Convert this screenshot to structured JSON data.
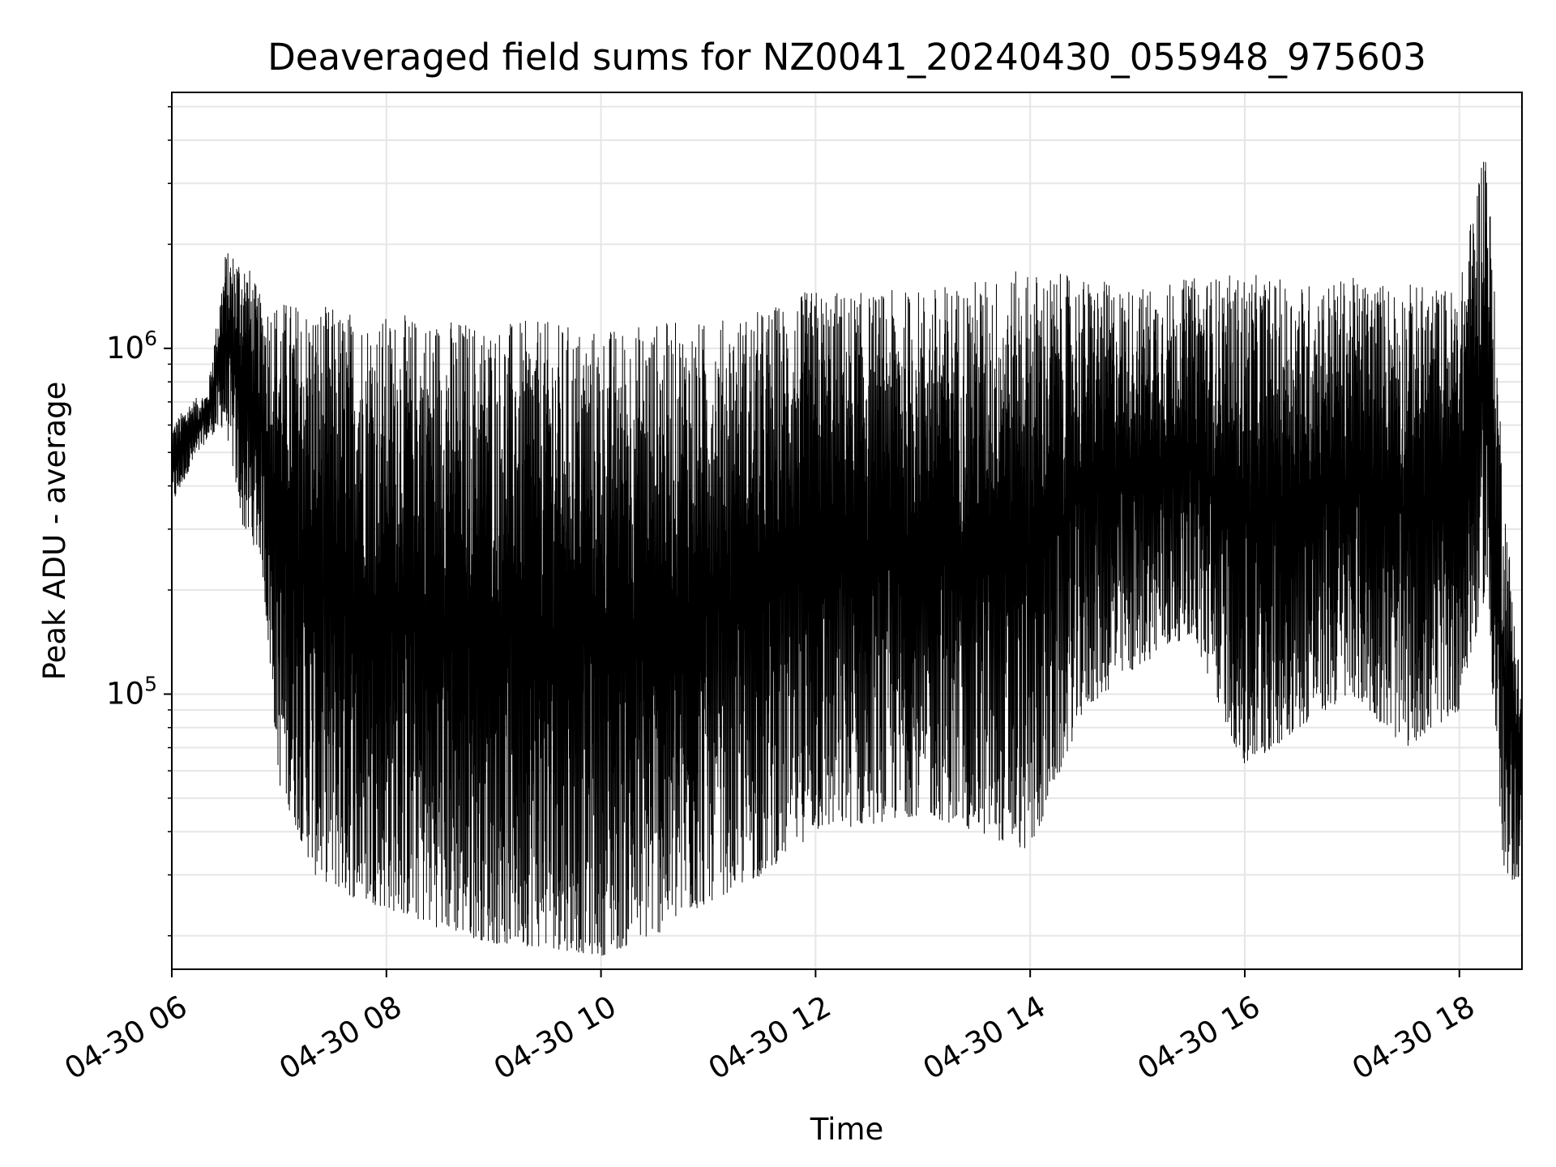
{
  "chart_data": {
    "type": "line",
    "title": "Deaveraged field sums for NZ0041_20240430_055948_975603",
    "xlabel": "Time",
    "ylabel": "Peak ADU - average",
    "x_scale": "time",
    "y_scale": "log",
    "xlim": [
      "2024-04-30T06:00",
      "2024-04-30T18:35"
    ],
    "ylim": [
      16000,
      5500000
    ],
    "grid": true,
    "legend": "none",
    "line_color": "#000000",
    "grid_color": "#e6e6e6",
    "x_ticks": [
      {
        "value": "2024-04-30T06:00",
        "label": "04-30 06"
      },
      {
        "value": "2024-04-30T08:00",
        "label": "04-30 08"
      },
      {
        "value": "2024-04-30T10:00",
        "label": "04-30 10"
      },
      {
        "value": "2024-04-30T12:00",
        "label": "04-30 12"
      },
      {
        "value": "2024-04-30T14:00",
        "label": "04-30 14"
      },
      {
        "value": "2024-04-30T16:00",
        "label": "04-30 16"
      },
      {
        "value": "2024-04-30T18:00",
        "label": "04-30 18"
      }
    ],
    "y_ticks": [
      {
        "value": 100000,
        "base": "10",
        "exp": "5"
      },
      {
        "value": 1000000,
        "base": "10",
        "exp": "6"
      }
    ],
    "series": [
      {
        "envelope": [
          {
            "t": "2024-04-30T06:00",
            "lo": 350000,
            "hi": 600000
          },
          {
            "t": "2024-04-30T06:10",
            "lo": 450000,
            "hi": 700000
          },
          {
            "t": "2024-04-30T06:20",
            "lo": 550000,
            "hi": 750000
          },
          {
            "t": "2024-04-30T06:30",
            "lo": 600000,
            "hi": 1900000
          },
          {
            "t": "2024-04-30T06:40",
            "lo": 300000,
            "hi": 1900000
          },
          {
            "t": "2024-04-30T06:50",
            "lo": 250000,
            "hi": 1400000
          },
          {
            "t": "2024-04-30T07:00",
            "lo": 55000,
            "hi": 1400000
          },
          {
            "t": "2024-04-30T07:20",
            "lo": 30000,
            "hi": 1350000
          },
          {
            "t": "2024-04-30T07:40",
            "lo": 26000,
            "hi": 1300000
          },
          {
            "t": "2024-04-30T08:00",
            "lo": 24000,
            "hi": 1250000
          },
          {
            "t": "2024-04-30T08:30",
            "lo": 21000,
            "hi": 1250000
          },
          {
            "t": "2024-04-30T09:00",
            "lo": 19000,
            "hi": 1200000
          },
          {
            "t": "2024-04-30T09:30",
            "lo": 18500,
            "hi": 1200000
          },
          {
            "t": "2024-04-30T10:00",
            "lo": 17500,
            "hi": 1150000
          },
          {
            "t": "2024-04-30T10:30",
            "lo": 20000,
            "hi": 1200000
          },
          {
            "t": "2024-04-30T11:00",
            "lo": 25000,
            "hi": 1200000
          },
          {
            "t": "2024-04-30T11:30",
            "lo": 30000,
            "hi": 1300000
          },
          {
            "t": "2024-04-30T12:00",
            "lo": 40000,
            "hi": 1500000
          },
          {
            "t": "2024-04-30T12:30",
            "lo": 42000,
            "hi": 1450000
          },
          {
            "t": "2024-04-30T13:00",
            "lo": 45000,
            "hi": 1500000
          },
          {
            "t": "2024-04-30T13:30",
            "lo": 40000,
            "hi": 1600000
          },
          {
            "t": "2024-04-30T14:00",
            "lo": 35000,
            "hi": 1700000
          },
          {
            "t": "2024-04-30T14:30",
            "lo": 90000,
            "hi": 1600000
          },
          {
            "t": "2024-04-30T15:00",
            "lo": 120000,
            "hi": 1500000
          },
          {
            "t": "2024-04-30T15:30",
            "lo": 150000,
            "hi": 1600000
          },
          {
            "t": "2024-04-30T16:00",
            "lo": 60000,
            "hi": 1650000
          },
          {
            "t": "2024-04-30T16:30",
            "lo": 80000,
            "hi": 1550000
          },
          {
            "t": "2024-04-30T17:00",
            "lo": 100000,
            "hi": 1600000
          },
          {
            "t": "2024-04-30T17:30",
            "lo": 70000,
            "hi": 1550000
          },
          {
            "t": "2024-04-30T18:00",
            "lo": 90000,
            "hi": 1500000
          },
          {
            "t": "2024-04-30T18:15",
            "lo": 200000,
            "hi": 4500000
          },
          {
            "t": "2024-04-30T18:25",
            "lo": 28000,
            "hi": 400000
          },
          {
            "t": "2024-04-30T18:35",
            "lo": 30000,
            "hi": 100000
          }
        ]
      }
    ]
  }
}
